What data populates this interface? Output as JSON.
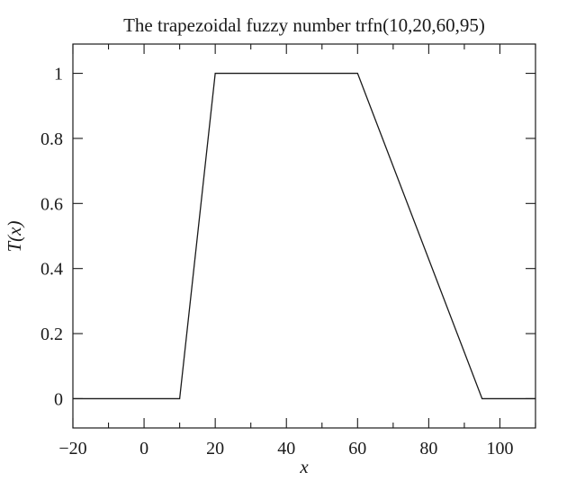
{
  "chart_data": {
    "type": "line",
    "title": "The trapezoidal fuzzy number trfn(10,20,60,95)",
    "xlabel": "x",
    "ylabel": "T(x)",
    "xlim": [
      -20,
      110
    ],
    "ylim": [
      -0.09,
      1.09
    ],
    "xticks": [
      -20,
      0,
      20,
      40,
      60,
      80,
      100
    ],
    "xtick_labels": [
      "−20",
      "0",
      "20",
      "40",
      "60",
      "80",
      "100"
    ],
    "yticks": [
      0,
      0.2,
      0.4,
      0.6,
      0.8,
      1
    ],
    "ytick_labels": [
      "0",
      "0.2",
      "0.4",
      "0.6",
      "0.8",
      "1"
    ],
    "x_minor_step": 10,
    "grid": false,
    "series": [
      {
        "x": [
          -20,
          10,
          20,
          60,
          95,
          110
        ],
        "y": [
          0,
          0,
          1,
          1,
          0,
          0
        ]
      }
    ]
  }
}
